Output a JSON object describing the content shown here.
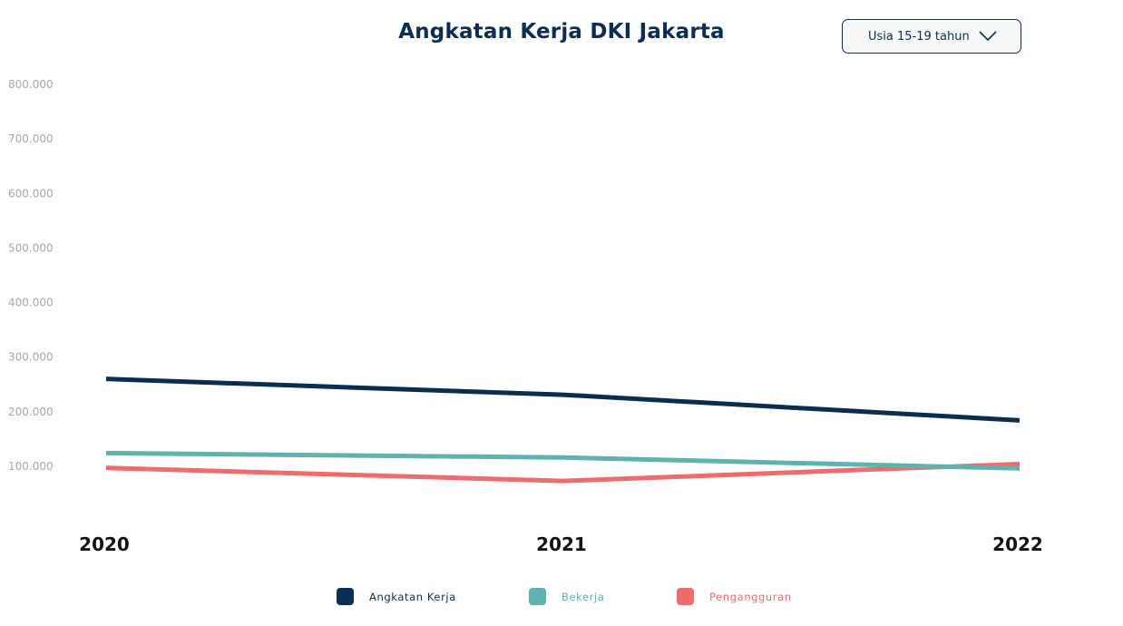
{
  "header": {
    "title": "Angkatan Kerja DKI Jakarta",
    "dropdown": {
      "selected": "Usia 15-19 tahun",
      "icon": "chevron-down-icon"
    }
  },
  "colors": {
    "navy": "#0b2d4f",
    "teal": "#5fb3ac",
    "red": "#f06b6e",
    "tick": "#a7a7a7"
  },
  "chart_data": {
    "type": "line",
    "title": "Angkatan Kerja DKI Jakarta",
    "x": [
      "2020",
      "2021",
      "2022"
    ],
    "y_ticks": [
      "100.000",
      "200.000",
      "300.000",
      "400.000",
      "500.000",
      "600.000",
      "700.000",
      "800.000"
    ],
    "ylim": [
      0,
      800000
    ],
    "grid": false,
    "legend_position": "bottom",
    "series": [
      {
        "name": "Angkatan Kerja",
        "color": "#0b2d4f",
        "values": [
          260000,
          231000,
          184000
        ]
      },
      {
        "name": "Bekerja",
        "color": "#5fb3ac",
        "values": [
          124000,
          116000,
          96000
        ]
      },
      {
        "name": "Pengangguran",
        "color": "#f06b6e",
        "values": [
          97000,
          73000,
          104000
        ]
      }
    ]
  }
}
